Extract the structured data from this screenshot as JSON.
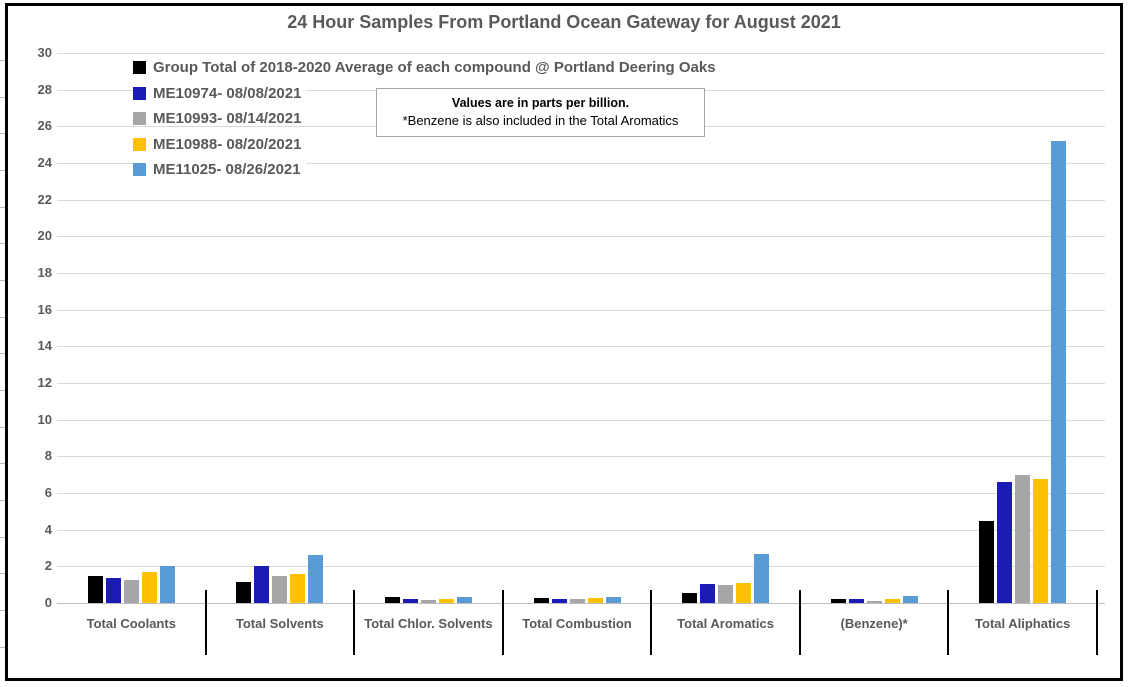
{
  "title": "24 Hour Samples From Portland Ocean Gateway for August 2021",
  "note": {
    "line1": "Values are in parts per billion.",
    "line2": "*Benzene is also included in the Total Aromatics"
  },
  "colors": {
    "text_gray": "#595959",
    "gridline": "#D9D9D9",
    "axis_line": "#BFBFBF",
    "note_border": "#A6A6A6",
    "frame": "#000000"
  },
  "chart_data": {
    "type": "bar",
    "title": "24 Hour Samples From Portland Ocean Gateway for August 2021",
    "unit": "parts per billion",
    "categories": [
      "Total Coolants",
      "Total Solvents",
      "Total Chlor. Solvents",
      "Total Combustion",
      "Total Aromatics",
      "(Benzene)*",
      "Total Aliphatics"
    ],
    "series": [
      {
        "name": "Group Total of 2018-2020 Average of each compound @ Portland Deering Oaks",
        "color": "#000000",
        "values": [
          1.5,
          1.15,
          0.35,
          0.25,
          0.55,
          0.2,
          4.5
        ]
      },
      {
        "name": "ME10974- 08/08/2021",
        "color": "#1C1CB4",
        "values": [
          1.35,
          2.0,
          0.2,
          0.2,
          1.05,
          0.2,
          6.6
        ]
      },
      {
        "name": "ME10993- 08/14/2021",
        "color": "#A6A6A6",
        "values": [
          1.25,
          1.5,
          0.15,
          0.2,
          1.0,
          0.1,
          7.0
        ]
      },
      {
        "name": "ME10988- 08/20/2021",
        "color": "#FFC000",
        "values": [
          1.7,
          1.6,
          0.2,
          0.25,
          1.1,
          0.2,
          6.75
        ]
      },
      {
        "name": "ME11025- 08/26/2021",
        "color": "#5B9BD5",
        "values": [
          2.0,
          2.6,
          0.35,
          0.35,
          2.7,
          0.4,
          25.2
        ]
      }
    ],
    "xlabel": "",
    "ylabel": "",
    "ylim": [
      0,
      30
    ],
    "ytick_step": 2,
    "grid": true,
    "legend_position": "top-left-inside"
  }
}
